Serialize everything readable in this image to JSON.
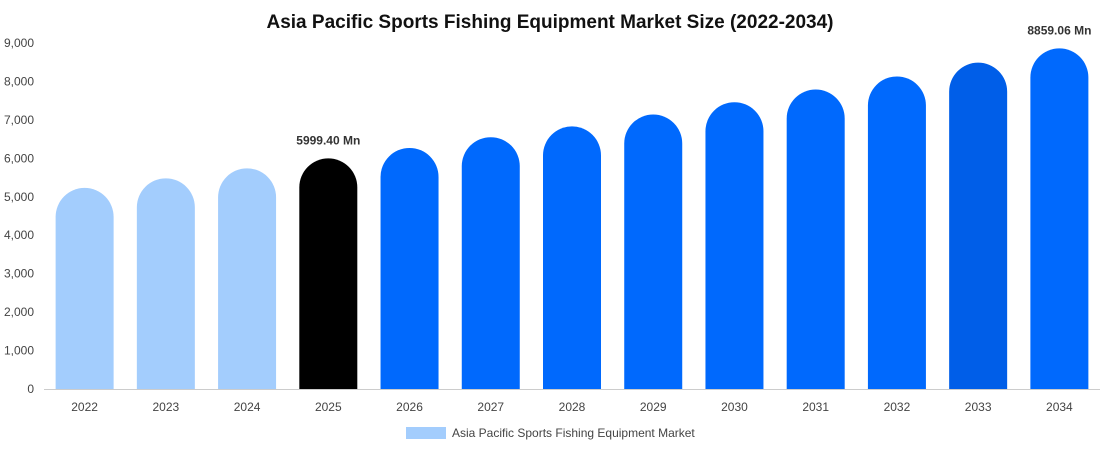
{
  "chart_data": {
    "type": "bar",
    "title": "Asia Pacific Sports Fishing Equipment Market Size (2022-2034)",
    "xlabel": "",
    "ylabel": "",
    "ylim": [
      0,
      9000
    ],
    "y_ticks": [
      "0",
      "1,000",
      "2,000",
      "3,000",
      "4,000",
      "5,000",
      "6,000",
      "7,000",
      "8,000",
      "9,000"
    ],
    "grid": false,
    "legend_position": "bottom",
    "categories": [
      "2022",
      "2023",
      "2024",
      "2025",
      "2026",
      "2027",
      "2028",
      "2029",
      "2030",
      "2031",
      "2032",
      "2033",
      "2034"
    ],
    "series": [
      {
        "name": "Asia Pacific Sports Fishing Equipment Market",
        "values": [
          5230,
          5480,
          5740,
          5999.4,
          6270,
          6550,
          6830,
          7140,
          7460,
          7790,
          8130,
          8490,
          8859.06
        ],
        "colors": [
          "#a3cdfd",
          "#a3cdfd",
          "#a3cdfd",
          "#000000",
          "#0069fd",
          "#0069fd",
          "#0069fd",
          "#0069fd",
          "#0069fd",
          "#0069fd",
          "#0069fd",
          "#005ee8",
          "#0069fd"
        ]
      }
    ],
    "legend_color": "#a3cdfd",
    "data_labels": [
      {
        "category": "2025",
        "text": "5999.40 Mn"
      },
      {
        "category": "2034",
        "text": "8859.06 Mn"
      }
    ]
  }
}
